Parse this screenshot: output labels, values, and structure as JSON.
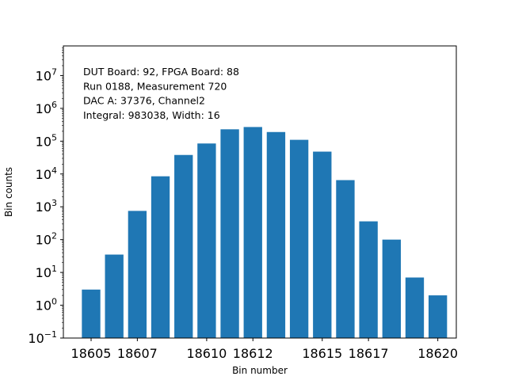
{
  "chart_data": {
    "type": "bar",
    "title": "",
    "xlabel": "Bin number",
    "ylabel": "Bin counts",
    "yscale": "log",
    "ylim": [
      0.1,
      80000000
    ],
    "xlim": [
      18603.8,
      18620.8
    ],
    "color": "#1f77b4",
    "bar_width": 0.8,
    "x": [
      18605,
      18606,
      18607,
      18608,
      18609,
      18610,
      18611,
      18612,
      18613,
      18614,
      18615,
      18616,
      18617,
      18618,
      18619,
      18620
    ],
    "values": [
      3,
      35,
      750,
      8500,
      38000,
      85000,
      230000,
      270000,
      190000,
      110000,
      48000,
      6500,
      360,
      100,
      7,
      2
    ],
    "x_ticks": [
      {
        "value": 18605,
        "label": "18605"
      },
      {
        "value": 18607,
        "label": "18607"
      },
      {
        "value": 18610,
        "label": "18610"
      },
      {
        "value": 18612,
        "label": "18612"
      },
      {
        "value": 18615,
        "label": "18615"
      },
      {
        "value": 18617,
        "label": "18617"
      },
      {
        "value": 18620,
        "label": "18620"
      }
    ],
    "y_ticks": [
      {
        "exp": -1,
        "base": "10",
        "sup": "−1"
      },
      {
        "exp": 0,
        "base": "10",
        "sup": "0"
      },
      {
        "exp": 1,
        "base": "10",
        "sup": "1"
      },
      {
        "exp": 2,
        "base": "10",
        "sup": "2"
      },
      {
        "exp": 3,
        "base": "10",
        "sup": "3"
      },
      {
        "exp": 4,
        "base": "10",
        "sup": "4"
      },
      {
        "exp": 5,
        "base": "10",
        "sup": "5"
      },
      {
        "exp": 6,
        "base": "10",
        "sup": "6"
      },
      {
        "exp": 7,
        "base": "10",
        "sup": "7"
      }
    ],
    "annotations": [
      "DUT Board: 92, FPGA Board: 88",
      "Run 0188, Measurement 720",
      "DAC A: 37376, Channel2",
      "Integral: 983038, Width: 16"
    ]
  }
}
